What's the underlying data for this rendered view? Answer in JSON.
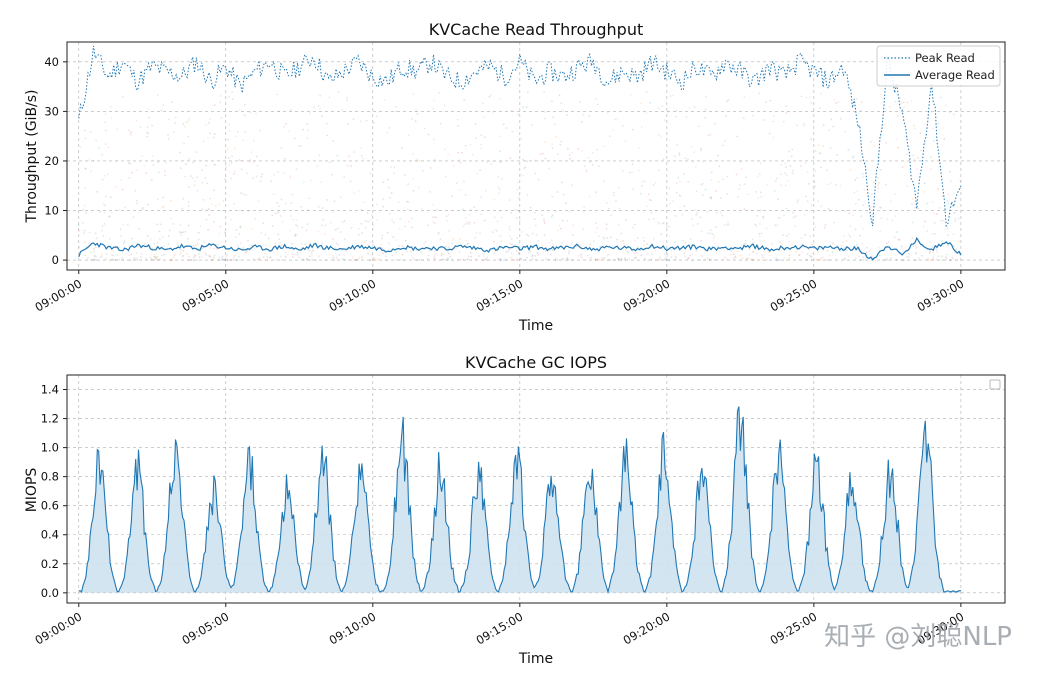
{
  "chart_data": [
    {
      "type": "line",
      "title": "KVCache Read Throughput",
      "xlabel": "Time",
      "ylabel": "Throughput (GiB/s)",
      "x_ticks": [
        "09:00:00",
        "09:05:00",
        "09:10:00",
        "09:15:00",
        "09:20:00",
        "09:25:00",
        "09:30:00"
      ],
      "x_range_minutes": [
        -0.4,
        31.5
      ],
      "ylim": [
        -2,
        44
      ],
      "y_ticks": [
        0,
        10,
        20,
        30,
        40
      ],
      "grid": true,
      "legend_position": "top-right",
      "series": [
        {
          "name": "Peak Read",
          "style": "dotted",
          "color": "#1f77b4",
          "x_minutes": [
            0,
            0.5,
            1,
            1.5,
            2,
            2.5,
            3,
            3.5,
            4,
            4.5,
            5,
            5.5,
            6,
            6.5,
            7,
            7.5,
            8,
            8.5,
            9,
            9.5,
            10,
            10.5,
            11,
            11.5,
            12,
            12.5,
            13,
            13.5,
            14,
            14.5,
            15,
            15.5,
            16,
            16.5,
            17,
            17.5,
            18,
            18.5,
            19,
            19.5,
            20,
            20.5,
            21,
            21.5,
            22,
            22.5,
            23,
            23.5,
            24,
            24.5,
            25,
            25.5,
            26,
            26.5,
            27,
            27.5,
            28,
            28.5,
            29,
            29.5,
            30
          ],
          "values": [
            28,
            42,
            37,
            40,
            36,
            39,
            38,
            37,
            40,
            36,
            39,
            35,
            38,
            40,
            37,
            39,
            41,
            36,
            38,
            40,
            37,
            36,
            39,
            38,
            40,
            37,
            36,
            38,
            39,
            37,
            40,
            36,
            38,
            37,
            39,
            40,
            36,
            38,
            37,
            40,
            38,
            36,
            39,
            37,
            40,
            38,
            36,
            39,
            37,
            40,
            38,
            36,
            39,
            28,
            8,
            40,
            30,
            11,
            36,
            8,
            15
          ]
        },
        {
          "name": "Average Read",
          "style": "solid",
          "color": "#1f77b4",
          "x_minutes": [
            0,
            0.5,
            1,
            1.5,
            2,
            2.5,
            3,
            3.5,
            4,
            4.5,
            5,
            5.5,
            6,
            6.5,
            7,
            7.5,
            8,
            8.5,
            9,
            9.5,
            10,
            10.5,
            11,
            11.5,
            12,
            12.5,
            13,
            13.5,
            14,
            14.5,
            15,
            15.5,
            16,
            16.5,
            17,
            17.5,
            18,
            18.5,
            19,
            19.5,
            20,
            20.5,
            21,
            21.5,
            22,
            22.5,
            23,
            23.5,
            24,
            24.5,
            25,
            25.5,
            26,
            26.5,
            27,
            27.5,
            28,
            28.5,
            29,
            29.5,
            30
          ],
          "values": [
            1,
            3.5,
            2.5,
            2,
            3,
            2.5,
            2,
            2.8,
            2.2,
            3,
            2.5,
            2,
            2.6,
            2.2,
            2.8,
            2,
            3,
            2.4,
            2.2,
            2.8,
            2.5,
            2,
            2.7,
            2.3,
            2.5,
            2.2,
            2.8,
            2.4,
            2,
            2.6,
            2.3,
            2.7,
            2.2,
            2.5,
            2.8,
            2.1,
            2.6,
            2.4,
            2.2,
            2.9,
            2.3,
            2.5,
            2.7,
            2.2,
            2.6,
            2.4,
            2.8,
            2.1,
            2.5,
            2.7,
            2.3,
            2.6,
            2.4,
            2.2,
            0.2,
            3,
            1,
            4,
            2,
            4,
            1
          ]
        }
      ]
    },
    {
      "type": "area",
      "title": "KVCache GC IOPS",
      "xlabel": "Time",
      "ylabel": "MIOPS",
      "x_ticks": [
        "09:00:00",
        "09:05:00",
        "09:10:00",
        "09:15:00",
        "09:20:00",
        "09:25:00",
        "09:30:00"
      ],
      "x_range_minutes": [
        -0.4,
        31.5
      ],
      "ylim": [
        -0.07,
        1.5
      ],
      "y_ticks": [
        0.0,
        0.2,
        0.4,
        0.6,
        0.8,
        1.0,
        1.2,
        1.4
      ],
      "grid": true,
      "legend_position": "top-right",
      "color": "#1f77b4",
      "fill_color": "#cfe2f1",
      "series": [
        {
          "name": "",
          "peak_minutes": [
            0.7,
            2.0,
            3.3,
            4.6,
            5.8,
            7.1,
            8.3,
            9.6,
            11.0,
            12.3,
            13.6,
            14.9,
            16.1,
            17.4,
            18.6,
            19.9,
            21.2,
            22.5,
            23.8,
            25.1,
            26.3,
            27.6,
            28.8
          ],
          "peak_values": [
            1.07,
            1.0,
            1.17,
            0.83,
            1.05,
            0.86,
            1.1,
            0.98,
            1.23,
            1.0,
            0.97,
            1.09,
            0.98,
            1.0,
            1.09,
            1.12,
            1.0,
            1.42,
            1.1,
            1.05,
            0.93,
            1.0,
            1.27
          ],
          "baseline": 0.01
        }
      ]
    }
  ],
  "watermark": "知乎 @刘聪NLP"
}
